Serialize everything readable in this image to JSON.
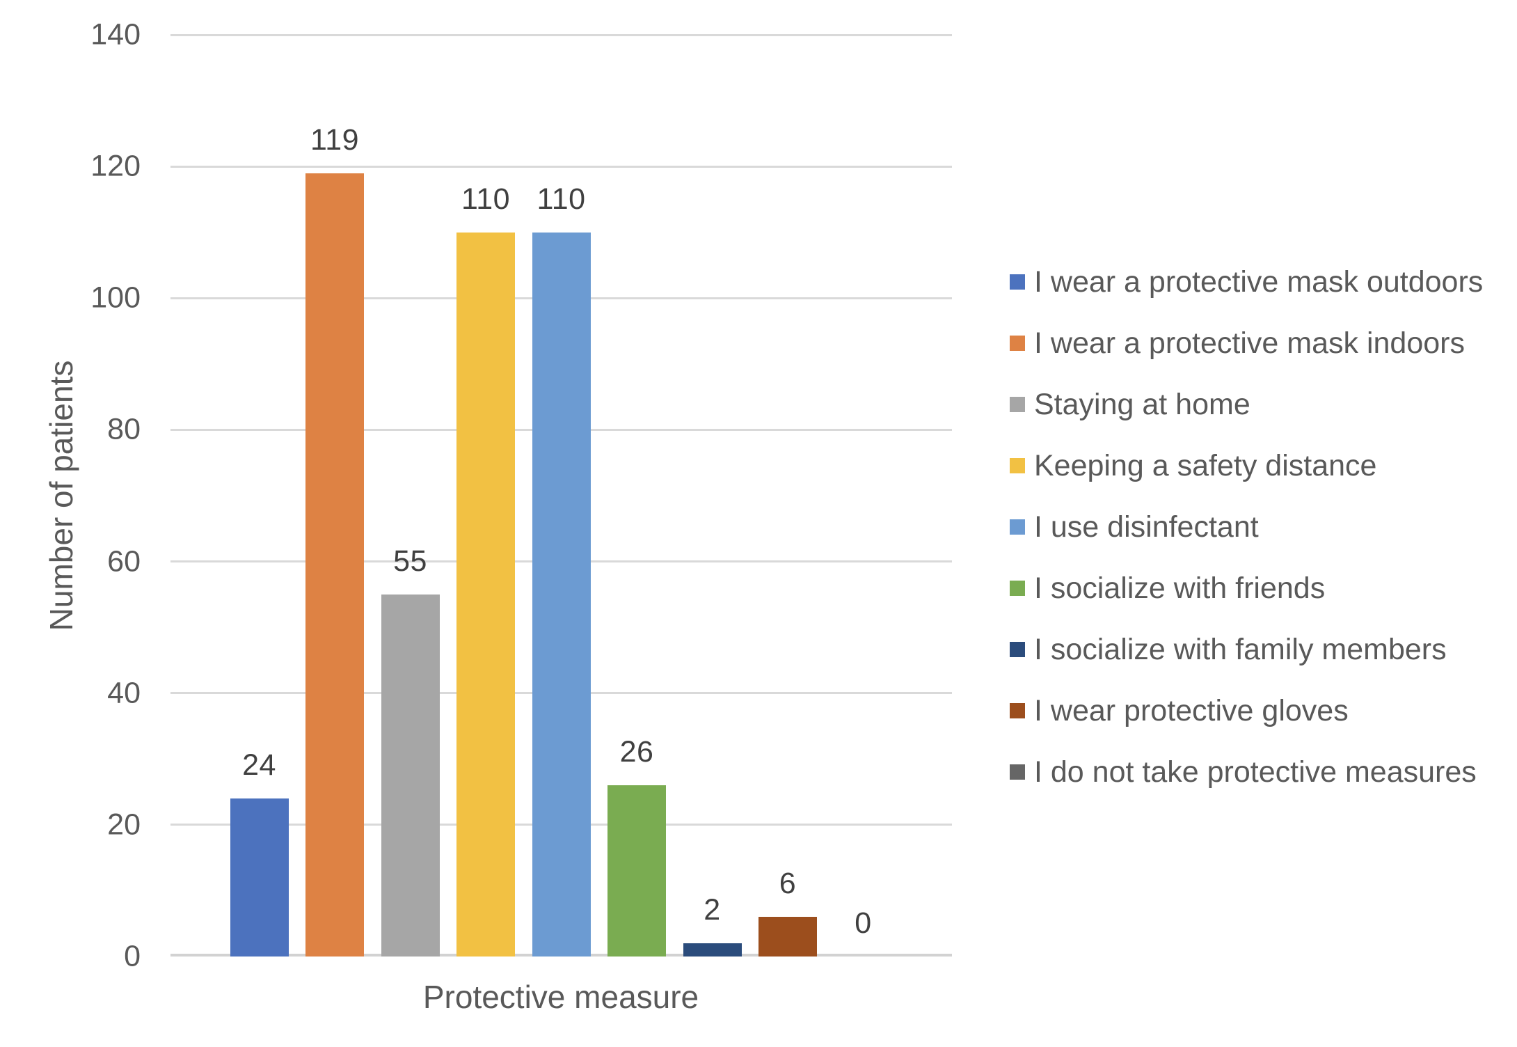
{
  "chart_data": {
    "type": "bar",
    "title": "",
    "xlabel": "Protective measure",
    "ylabel": "Number of patients",
    "ylim": [
      0,
      140
    ],
    "ytick_step": 20,
    "yticks": [
      0,
      20,
      40,
      60,
      80,
      100,
      120,
      140
    ],
    "grid": true,
    "legend_position": "right",
    "data_labels_shown": true,
    "series": [
      {
        "name": "I wear a protective mask outdoors",
        "value": 24,
        "color": "#4C72BE"
      },
      {
        "name": "I wear a protective mask indoors",
        "value": 119,
        "color": "#DE8244"
      },
      {
        "name": "Staying at home",
        "value": 55,
        "color": "#A6A6A6"
      },
      {
        "name": "Keeping a safety distance",
        "value": 110,
        "color": "#F2C143"
      },
      {
        "name": "I use disinfectant",
        "value": 110,
        "color": "#6C9BD2"
      },
      {
        "name": "I socialize with friends",
        "value": 26,
        "color": "#7AAC51"
      },
      {
        "name": "I socialize with family members",
        "value": 2,
        "color": "#2B4C7C"
      },
      {
        "name": "I wear protective gloves",
        "value": 6,
        "color": "#9C4E1D"
      },
      {
        "name": "I do not take protective measures",
        "value": 0,
        "color": "#666666"
      }
    ],
    "style": {
      "gridline_color": "#d9d9d9",
      "axis_line_color": "#d2d2d2",
      "tick_text_color": "#595959",
      "data_label_color": "#404040",
      "legend_text_color": "#595959"
    }
  }
}
